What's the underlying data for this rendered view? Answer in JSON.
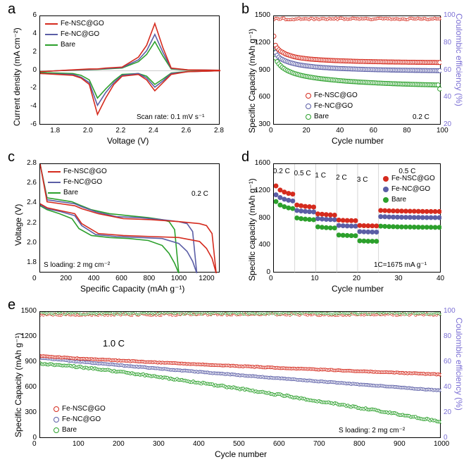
{
  "colors": {
    "fensc": "#d52b1e",
    "fenc": "#5b5ea6",
    "bare": "#2ca02c",
    "ce_axis": "#7b6fd4",
    "axis": "#000000",
    "grid": "#cccccc"
  },
  "series_labels": {
    "fensc": "Fe-NSC@GO",
    "fenc": "Fe-NC@GO",
    "bare": "Bare"
  },
  "panel_a": {
    "label": "a",
    "type": "line",
    "xlabel": "Voltage (V)",
    "ylabel": "Current density (mA cm⁻²)",
    "xlim": [
      1.7,
      2.8
    ],
    "ylim": [
      -6,
      6
    ],
    "xticks": [
      1.8,
      2.0,
      2.2,
      2.4,
      2.6,
      2.8
    ],
    "yticks": [
      -6,
      -4,
      -2,
      0,
      2,
      4,
      6
    ],
    "annotation": "Scan rate: 0.1 mV s⁻¹",
    "line_width": 1.6,
    "fensc": {
      "x": [
        1.7,
        1.9,
        1.95,
        2.0,
        2.05,
        2.1,
        2.15,
        2.2,
        2.3,
        2.35,
        2.4,
        2.45,
        2.5,
        2.6,
        2.8,
        2.8,
        2.6,
        2.5,
        2.45,
        2.4,
        2.35,
        2.3,
        2.2,
        2.1,
        2.05,
        2.0,
        1.95,
        1.9,
        1.85,
        1.8,
        1.7
      ],
      "y": [
        -0.3,
        -0.5,
        -0.8,
        -1.5,
        -4.8,
        -3.0,
        -1.5,
        -0.6,
        -0.4,
        -1.0,
        -2.2,
        -1.3,
        -0.4,
        -0.1,
        0,
        0.05,
        0.1,
        0.3,
        2.5,
        5.2,
        2.8,
        1.5,
        0.4,
        0.3,
        0.2,
        0.2,
        0.15,
        0.1,
        0.05,
        0,
        -0.1
      ]
    },
    "fenc": {
      "x": [
        1.7,
        1.9,
        1.95,
        2.0,
        2.05,
        2.1,
        2.15,
        2.2,
        2.3,
        2.35,
        2.4,
        2.45,
        2.5,
        2.6,
        2.8,
        2.8,
        2.6,
        2.5,
        2.45,
        2.4,
        2.35,
        2.3,
        2.2,
        2.1,
        2.05,
        2.0,
        1.95,
        1.9,
        1.85,
        1.8,
        1.7
      ],
      "y": [
        -0.3,
        -0.4,
        -0.7,
        -1.3,
        -3.8,
        -2.4,
        -1.3,
        -0.5,
        -0.3,
        -0.8,
        -1.8,
        -1.1,
        -0.3,
        -0.1,
        0,
        0.05,
        0.1,
        0.25,
        2.0,
        4.0,
        2.2,
        1.2,
        0.35,
        0.25,
        0.18,
        0.15,
        0.12,
        0.08,
        0.04,
        0,
        -0.1
      ]
    },
    "bare": {
      "x": [
        1.7,
        1.9,
        1.95,
        2.0,
        2.05,
        2.1,
        2.15,
        2.2,
        2.3,
        2.35,
        2.4,
        2.45,
        2.5,
        2.6,
        2.8,
        2.8,
        2.6,
        2.5,
        2.45,
        2.4,
        2.35,
        2.3,
        2.2,
        2.1,
        2.05,
        2.0,
        1.95,
        1.9,
        1.85,
        1.8,
        1.7
      ],
      "y": [
        -0.2,
        -0.3,
        -0.5,
        -1.0,
        -3.0,
        -2.0,
        -1.1,
        -0.4,
        -0.3,
        -0.6,
        -1.5,
        -0.9,
        -0.25,
        -0.08,
        0,
        0.04,
        0.08,
        0.2,
        1.6,
        3.2,
        1.8,
        1.0,
        0.3,
        0.2,
        0.15,
        0.12,
        0.1,
        0.06,
        0.03,
        0,
        -0.08
      ]
    }
  },
  "panel_b": {
    "label": "b",
    "type": "scatter-line",
    "xlabel": "Cycle number",
    "ylabel": "Specific Capacity (mAh g⁻¹)",
    "y2label": "Coulombic efficiency (%)",
    "xlim": [
      0,
      100
    ],
    "ylim": [
      300,
      1500
    ],
    "y2lim": [
      20,
      100
    ],
    "xticks": [
      0,
      20,
      40,
      60,
      80,
      100
    ],
    "yticks": [
      300,
      600,
      900,
      1200,
      1500
    ],
    "y2ticks": [
      20,
      40,
      60,
      80,
      100
    ],
    "annotation": "0.2 C",
    "marker_size": 3,
    "fensc_cap": [
      1280,
      1180,
      1150,
      1130,
      1115,
      1105,
      1095,
      1085,
      1078,
      1072,
      1066,
      1060,
      1055,
      1051,
      1047,
      1044,
      1041,
      1038,
      1036,
      1034,
      1032,
      1030,
      1028,
      1027,
      1025,
      1024,
      1023,
      1021,
      1020,
      1019,
      1018,
      1017,
      1016,
      1015,
      1014,
      1013,
      1012,
      1011,
      1011,
      1010,
      1009,
      1009,
      1008,
      1007,
      1007,
      1006,
      1006,
      1005,
      1005,
      1004,
      1004,
      1003,
      1003,
      1003,
      1002,
      1002,
      1001,
      1001,
      1001,
      1000,
      1000,
      1000,
      999,
      999,
      999,
      998,
      998,
      998,
      997,
      997,
      997,
      997,
      996,
      996,
      996,
      996,
      995,
      995,
      995,
      995,
      994,
      994,
      994,
      994,
      994,
      993,
      993,
      993,
      993,
      993,
      992,
      992,
      992,
      992,
      992,
      992,
      992,
      991,
      991,
      991
    ],
    "fenc_cap": [
      1170,
      1100,
      1070,
      1050,
      1035,
      1025,
      1015,
      1007,
      1000,
      994,
      988,
      983,
      978,
      974,
      970,
      966,
      963,
      960,
      957,
      954,
      952,
      950,
      948,
      946,
      944,
      942,
      941,
      939,
      938,
      936,
      935,
      934,
      933,
      931,
      930,
      929,
      928,
      927,
      926,
      925,
      924,
      924,
      923,
      922,
      921,
      921,
      920,
      919,
      919,
      918,
      917,
      917,
      916,
      916,
      915,
      915,
      914,
      914,
      913,
      913,
      912,
      912,
      911,
      911,
      911,
      910,
      910,
      910,
      909,
      909,
      908,
      908,
      908,
      907,
      907,
      907,
      906,
      906,
      906,
      906,
      905,
      905,
      905,
      905,
      904,
      904,
      904,
      904,
      903,
      903,
      903,
      903,
      902,
      902,
      902,
      902,
      902,
      901,
      901,
      901
    ],
    "bare_cap": [
      1150,
      1040,
      1000,
      975,
      955,
      938,
      925,
      913,
      903,
      894,
      886,
      879,
      872,
      866,
      861,
      856,
      851,
      847,
      843,
      839,
      836,
      832,
      829,
      826,
      823,
      821,
      818,
      816,
      813,
      811,
      809,
      807,
      805,
      803,
      801,
      799,
      797,
      796,
      794,
      792,
      791,
      789,
      788,
      786,
      785,
      784,
      782,
      781,
      780,
      779,
      777,
      776,
      775,
      774,
      773,
      772,
      771,
      770,
      769,
      768,
      767,
      766,
      765,
      765,
      764,
      763,
      762,
      761,
      761,
      760,
      759,
      758,
      758,
      757,
      756,
      756,
      755,
      754,
      754,
      753,
      753,
      752,
      751,
      751,
      750,
      750,
      749,
      749,
      748,
      748,
      747,
      747,
      746,
      746,
      745,
      745,
      744,
      744,
      744,
      700
    ],
    "ce": 98
  },
  "panel_c": {
    "label": "c",
    "type": "line",
    "xlabel": "Specific Capacity (mAh g⁻¹)",
    "ylabel": "Voltage (V)",
    "xlim": [
      0,
      1300
    ],
    "ylim": [
      1.7,
      2.8
    ],
    "xticks": [
      0,
      200,
      400,
      600,
      800,
      1000,
      1200
    ],
    "yticks": [
      1.8,
      2.0,
      2.2,
      2.4,
      2.6,
      2.8
    ],
    "annotation_rate": "0.2 C",
    "annotation_loading": "S loading: 2 mg cm⁻²",
    "line_width": 1.6,
    "fensc_d": {
      "x": [
        0,
        50,
        150,
        250,
        300,
        420,
        600,
        800,
        1000,
        1150,
        1200,
        1240,
        1270
      ],
      "y": [
        2.4,
        2.36,
        2.33,
        2.3,
        2.2,
        2.1,
        2.08,
        2.07,
        2.06,
        2.02,
        1.95,
        1.85,
        1.7
      ]
    },
    "fensc_c": {
      "x": [
        1270,
        1240,
        1200,
        1150,
        1000,
        800,
        600,
        420,
        300,
        250,
        150,
        50,
        0
      ],
      "y": [
        1.7,
        2.1,
        2.18,
        2.2,
        2.22,
        2.24,
        2.25,
        2.3,
        2.35,
        2.38,
        2.4,
        2.42,
        2.8
      ]
    },
    "fenc_d": {
      "x": [
        0,
        50,
        150,
        250,
        300,
        400,
        550,
        720,
        880,
        1000,
        1060,
        1100,
        1130
      ],
      "y": [
        2.39,
        2.35,
        2.32,
        2.28,
        2.18,
        2.09,
        2.07,
        2.06,
        2.05,
        2.0,
        1.92,
        1.82,
        1.7
      ]
    },
    "fenc_c": {
      "x": [
        1130,
        1100,
        1060,
        1000,
        880,
        720,
        550,
        400,
        300,
        250,
        150,
        50,
        0
      ],
      "y": [
        1.7,
        2.12,
        2.2,
        2.22,
        2.24,
        2.26,
        2.27,
        2.32,
        2.37,
        2.4,
        2.42,
        2.44,
        2.8
      ]
    },
    "bare_d": {
      "x": [
        0,
        50,
        140,
        230,
        280,
        370,
        500,
        640,
        780,
        880,
        930,
        970,
        1000
      ],
      "y": [
        2.38,
        2.34,
        2.3,
        2.25,
        2.15,
        2.08,
        2.06,
        2.05,
        2.03,
        1.98,
        1.9,
        1.8,
        1.7
      ]
    },
    "bare_c": {
      "x": [
        1000,
        970,
        930,
        880,
        780,
        640,
        500,
        370,
        280,
        230,
        140,
        50,
        0
      ],
      "y": [
        1.7,
        2.14,
        2.22,
        2.24,
        2.26,
        2.28,
        2.3,
        2.34,
        2.39,
        2.42,
        2.44,
        2.46,
        2.8
      ]
    }
  },
  "panel_d": {
    "label": "d",
    "type": "scatter",
    "xlabel": "Cycle number",
    "ylabel": "Specific capacity (mAh g⁻¹)",
    "xlim": [
      0,
      40
    ],
    "ylim": [
      0,
      1600
    ],
    "xticks": [
      0,
      10,
      20,
      30,
      40
    ],
    "yticks": [
      0,
      400,
      800,
      1200,
      1600
    ],
    "rate_labels": [
      "0.2 C",
      "0.5 C",
      "1 C",
      "2 C",
      "3 C",
      "0.5 C"
    ],
    "rate_x": [
      2,
      7,
      12,
      17,
      22,
      32
    ],
    "annotation": "1C=1675 mA g⁻¹",
    "marker_size": 3.5,
    "vlines": [
      5,
      10,
      15,
      20,
      25
    ],
    "fensc": [
      1280,
      1220,
      1190,
      1170,
      1160,
      1000,
      990,
      980,
      975,
      970,
      870,
      865,
      860,
      855,
      852,
      780,
      775,
      773,
      771,
      770,
      700,
      697,
      695,
      694,
      693,
      920,
      918,
      915,
      913,
      912,
      911,
      910,
      909,
      908,
      907,
      906,
      905,
      905,
      904,
      904
    ],
    "fenc": [
      1150,
      1110,
      1085,
      1070,
      1060,
      920,
      912,
      906,
      902,
      898,
      800,
      794,
      790,
      787,
      785,
      700,
      696,
      693,
      691,
      690,
      610,
      607,
      605,
      604,
      603,
      830,
      828,
      825,
      823,
      822,
      821,
      820,
      819,
      818,
      818,
      817,
      816,
      816,
      815,
      815
    ],
    "bare": [
      1050,
      1000,
      975,
      958,
      948,
      810,
      800,
      793,
      788,
      784,
      680,
      673,
      668,
      665,
      663,
      560,
      556,
      553,
      551,
      550,
      475,
      472,
      470,
      469,
      468,
      690,
      687,
      684,
      682,
      680,
      679,
      678,
      677,
      676,
      675,
      674,
      674,
      673,
      672,
      672
    ]
  },
  "panel_e": {
    "label": "e",
    "type": "scatter-line",
    "xlabel": "Cycle number",
    "ylabel": "Specific Capacity (mAh g⁻¹)",
    "y2label": "Coulombic efficiency (%)",
    "xlim": [
      0,
      1000
    ],
    "ylim": [
      0,
      1500
    ],
    "y2lim": [
      0,
      100
    ],
    "xticks": [
      0,
      100,
      200,
      300,
      400,
      500,
      600,
      700,
      800,
      900,
      1000
    ],
    "yticks": [
      0,
      300,
      600,
      900,
      1200,
      1500
    ],
    "y2ticks": [
      0,
      20,
      40,
      60,
      80,
      100
    ],
    "annotation_rate": "1.0 C",
    "annotation_loading": "S loading: 2 mg cm⁻²",
    "marker_size": 2,
    "fensc_start": 980,
    "fensc_end": 760,
    "fenc_start": 960,
    "fenc_end": 570,
    "bare_start": 890,
    "bare_end": 200,
    "ce": 98
  }
}
